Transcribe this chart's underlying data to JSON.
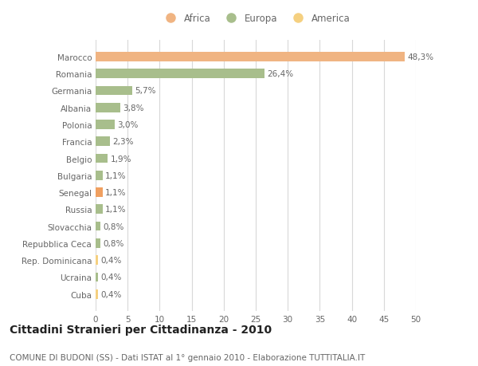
{
  "categories": [
    "Marocco",
    "Romania",
    "Germania",
    "Albania",
    "Polonia",
    "Francia",
    "Belgio",
    "Bulgaria",
    "Senegal",
    "Russia",
    "Slovacchia",
    "Repubblica Ceca",
    "Rep. Dominicana",
    "Ucraina",
    "Cuba"
  ],
  "values": [
    48.3,
    26.4,
    5.7,
    3.8,
    3.0,
    2.3,
    1.9,
    1.1,
    1.1,
    1.1,
    0.8,
    0.8,
    0.4,
    0.4,
    0.4
  ],
  "labels": [
    "48,3%",
    "26,4%",
    "5,7%",
    "3,8%",
    "3,0%",
    "2,3%",
    "1,9%",
    "1,1%",
    "1,1%",
    "1,1%",
    "0,8%",
    "0,8%",
    "0,4%",
    "0,4%",
    "0,4%"
  ],
  "colors": [
    "#f0b482",
    "#a8be8c",
    "#a8be8c",
    "#a8be8c",
    "#a8be8c",
    "#a8be8c",
    "#a8be8c",
    "#a8be8c",
    "#f0a060",
    "#a8be8c",
    "#a8be8c",
    "#a8be8c",
    "#f5d080",
    "#a8be8c",
    "#f5d080"
  ],
  "legend_labels": [
    "Africa",
    "Europa",
    "America"
  ],
  "legend_colors": [
    "#f0b482",
    "#a8be8c",
    "#f5d080"
  ],
  "title": "Cittadini Stranieri per Cittadinanza - 2010",
  "subtitle": "COMUNE DI BUDONI (SS) - Dati ISTAT al 1° gennaio 2010 - Elaborazione TUTTITALIA.IT",
  "xlim": [
    0,
    50
  ],
  "xticks": [
    0,
    5,
    10,
    15,
    20,
    25,
    30,
    35,
    40,
    45,
    50
  ],
  "background_color": "#ffffff",
  "grid_color": "#d8d8d8",
  "bar_height": 0.55,
  "label_fontsize": 7.5,
  "tick_fontsize": 7.5,
  "title_fontsize": 10,
  "subtitle_fontsize": 7.5
}
